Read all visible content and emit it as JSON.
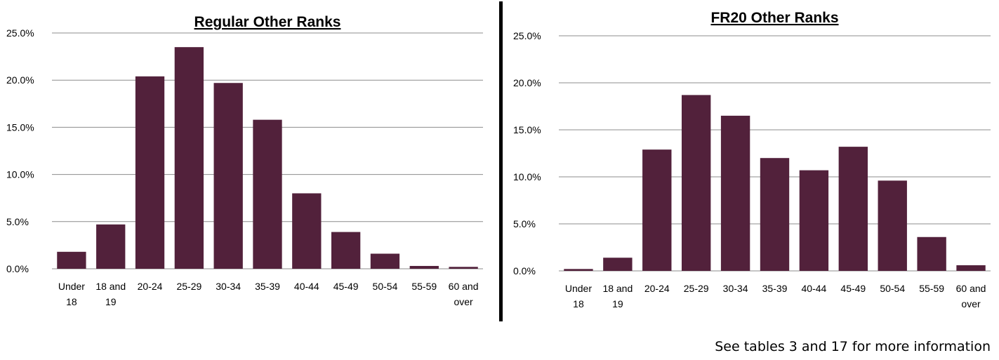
{
  "charts": [
    {
      "chart_data": {
        "type": "bar",
        "title": "Regular Other Ranks",
        "categories": [
          "Under 18",
          "18 and 19",
          "20-24",
          "25-29",
          "30-34",
          "35-39",
          "40-44",
          "45-49",
          "50-54",
          "55-59",
          "60 and over"
        ],
        "values": [
          1.8,
          4.7,
          20.4,
          23.5,
          19.7,
          15.8,
          8.0,
          3.9,
          1.6,
          0.3,
          0.2
        ],
        "yticks": [
          "0.0%",
          "5.0%",
          "10.0%",
          "15.0%",
          "20.0%",
          "25.0%"
        ],
        "ylim": [
          0,
          25
        ],
        "xlabel": "",
        "ylabel": "",
        "grid": true,
        "legend": "none",
        "bar_color": "#52213b"
      }
    },
    {
      "chart_data": {
        "type": "bar",
        "title": "FR20 Other Ranks",
        "categories": [
          "Under 18",
          "18 and 19",
          "20-24",
          "25-29",
          "30-34",
          "35-39",
          "40-44",
          "45-49",
          "50-54",
          "55-59",
          "60 and over"
        ],
        "values": [
          0.2,
          1.4,
          12.9,
          18.7,
          16.5,
          12.0,
          10.7,
          13.2,
          9.6,
          3.6,
          0.6
        ],
        "yticks": [
          "0.0%",
          "5.0%",
          "10.0%",
          "15.0%",
          "20.0%",
          "25.0%"
        ],
        "ylim": [
          0,
          25
        ],
        "xlabel": "",
        "ylabel": "",
        "grid": true,
        "legend": "none",
        "bar_color": "#52213b"
      }
    }
  ],
  "footnote": "See tables 3 and 17 for more information"
}
